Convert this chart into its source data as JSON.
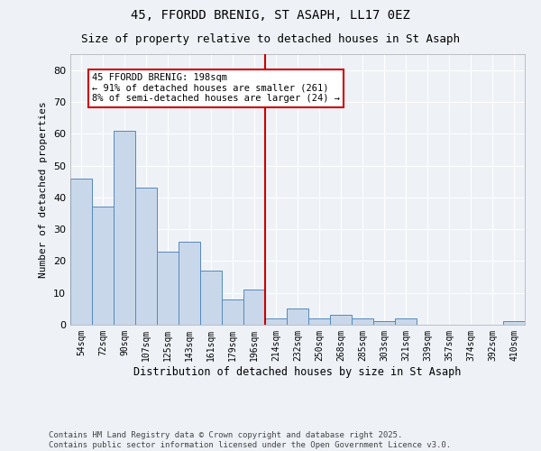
{
  "title1": "45, FFORDD BRENIG, ST ASAPH, LL17 0EZ",
  "title2": "Size of property relative to detached houses in St Asaph",
  "xlabel": "Distribution of detached houses by size in St Asaph",
  "ylabel": "Number of detached properties",
  "categories": [
    "54sqm",
    "72sqm",
    "90sqm",
    "107sqm",
    "125sqm",
    "143sqm",
    "161sqm",
    "179sqm",
    "196sqm",
    "214sqm",
    "232sqm",
    "250sqm",
    "268sqm",
    "285sqm",
    "303sqm",
    "321sqm",
    "339sqm",
    "357sqm",
    "374sqm",
    "392sqm",
    "410sqm"
  ],
  "values": [
    46,
    37,
    61,
    43,
    23,
    26,
    17,
    8,
    11,
    2,
    5,
    2,
    3,
    2,
    1,
    2,
    0,
    0,
    0,
    0,
    1
  ],
  "bar_color": "#c8d8ea",
  "bar_edge_color": "#5588bb",
  "vline_x_index": 8,
  "vline_color": "#cc0000",
  "annotation_text": "45 FFORDD BRENIG: 198sqm\n← 91% of detached houses are smaller (261)\n8% of semi-detached houses are larger (24) →",
  "box_color": "#cc0000",
  "ylim": [
    0,
    85
  ],
  "yticks": [
    0,
    10,
    20,
    30,
    40,
    50,
    60,
    70,
    80
  ],
  "footer": "Contains HM Land Registry data © Crown copyright and database right 2025.\nContains public sector information licensed under the Open Government Licence v3.0.",
  "bg_color": "#eef2f7",
  "plot_bg_color": "#eef2f7",
  "grid_color": "#ffffff",
  "title1_fontsize": 10,
  "title2_fontsize": 9,
  "annotation_fontsize": 7.5,
  "footer_fontsize": 6.5,
  "xlabel_fontsize": 8.5,
  "ylabel_fontsize": 8,
  "xtick_fontsize": 7,
  "ytick_fontsize": 8
}
